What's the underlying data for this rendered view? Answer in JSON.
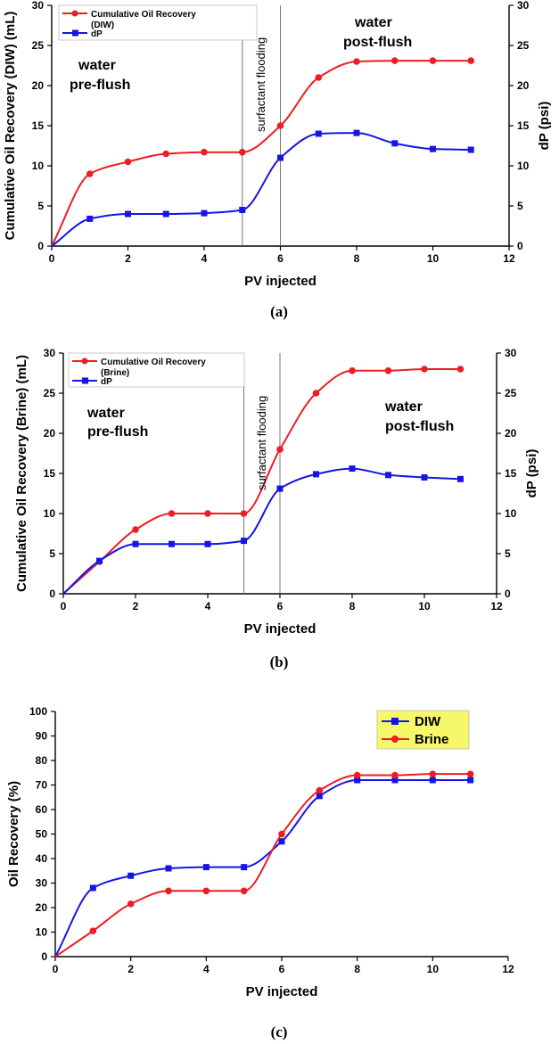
{
  "chart_data": [
    {
      "id": "a",
      "type": "line",
      "panel_label": "(a)",
      "xlabel": "PV injected",
      "ylabel": "Cumulative Oil Recovery (DIW) (mL)",
      "y2label": "dP (psi)",
      "xlim": [
        0,
        12
      ],
      "ylim": [
        0,
        30
      ],
      "y2lim": [
        0,
        30
      ],
      "xticks": [
        0,
        2,
        4,
        6,
        8,
        10,
        12
      ],
      "yticks": [
        0,
        5,
        10,
        15,
        20,
        25,
        30
      ],
      "y2ticks": [
        0,
        5,
        10,
        15,
        20,
        25,
        30
      ],
      "legend": {
        "position": "top-left",
        "entries": [
          "Cumulative Oil Recovery",
          "(DIW)",
          "dP"
        ]
      },
      "series": [
        {
          "name": "Cumulative Oil Recovery (DIW)",
          "color": "#ee1c24",
          "marker": "circle",
          "axis": "left",
          "x": [
            0,
            1,
            2,
            3,
            4,
            5,
            6,
            7,
            8,
            9,
            10,
            11
          ],
          "values": [
            0,
            9,
            10.5,
            11.5,
            11.7,
            11.7,
            15,
            21,
            23,
            23.1,
            23.1,
            23.1
          ]
        },
        {
          "name": "dP",
          "color": "#1515e6",
          "marker": "square",
          "axis": "right",
          "x": [
            0,
            1,
            2,
            3,
            4,
            5,
            6,
            7,
            8,
            9,
            10,
            11
          ],
          "values": [
            0,
            3.4,
            4,
            4,
            4.1,
            4.5,
            11,
            14,
            14.1,
            12.8,
            12.1,
            12
          ]
        }
      ],
      "vlines": [
        5,
        6
      ],
      "annotations": {
        "left_line1": "water",
        "left_line2": "pre-flush",
        "right_line1": "water",
        "right_line2": "post-flush",
        "vertical": "surfactant flooding"
      }
    },
    {
      "id": "b",
      "type": "line",
      "panel_label": "(b)",
      "xlabel": "PV injected",
      "ylabel": "Cumulative Oil Recovery (Brine) (mL)",
      "y2label": "dP (psi)",
      "xlim": [
        0,
        12
      ],
      "ylim": [
        0,
        30
      ],
      "y2lim": [
        0,
        30
      ],
      "xticks": [
        0,
        2,
        4,
        6,
        8,
        10,
        12
      ],
      "yticks": [
        0,
        5,
        10,
        15,
        20,
        25,
        30
      ],
      "y2ticks": [
        0,
        5,
        10,
        15,
        20,
        25,
        30
      ],
      "legend": {
        "position": "top-left",
        "entries": [
          "Cumulative Oil Recovery",
          "(Brine)",
          "dP"
        ]
      },
      "series": [
        {
          "name": "Cumulative Oil Recovery (Brine)",
          "color": "#ee1c24",
          "marker": "circle",
          "axis": "left",
          "x": [
            0,
            1,
            2,
            3,
            4,
            5,
            6,
            7,
            8,
            9,
            10,
            11
          ],
          "values": [
            0,
            4,
            8,
            10,
            10,
            10,
            18,
            25,
            27.8,
            27.8,
            28,
            28
          ]
        },
        {
          "name": "dP",
          "color": "#1515e6",
          "marker": "square",
          "axis": "right",
          "x": [
            0,
            1,
            2,
            3,
            4,
            5,
            6,
            7,
            8,
            9,
            10,
            11
          ],
          "values": [
            0,
            4.1,
            6.2,
            6.2,
            6.2,
            6.6,
            13.1,
            14.9,
            15.6,
            14.8,
            14.5,
            14.3
          ]
        }
      ],
      "vlines": [
        5,
        6
      ],
      "annotations": {
        "left_line1": "water",
        "left_line2": "pre-flush",
        "right_line1": "water",
        "right_line2": "post-flush",
        "vertical": "surfactant flooding"
      }
    },
    {
      "id": "c",
      "type": "line",
      "panel_label": "(c)",
      "xlabel": "PV injected",
      "ylabel": "Oil Recovery (%)",
      "xlim": [
        0,
        12
      ],
      "ylim": [
        0,
        100
      ],
      "xticks": [
        0,
        2,
        4,
        6,
        8,
        10,
        12
      ],
      "yticks": [
        0,
        10,
        20,
        30,
        40,
        50,
        60,
        70,
        80,
        90,
        100
      ],
      "legend": {
        "position": "top-right",
        "entries": [
          "DIW",
          "Brine"
        ],
        "background": "#f7f76a"
      },
      "series": [
        {
          "name": "DIW",
          "color": "#1515e6",
          "marker": "square",
          "axis": "left",
          "x": [
            0,
            1,
            2,
            3,
            4,
            5,
            6,
            7,
            8,
            9,
            10,
            11
          ],
          "values": [
            0,
            28,
            33,
            36,
            36.5,
            36.5,
            47,
            65.5,
            72,
            72,
            72,
            72
          ]
        },
        {
          "name": "Brine",
          "color": "#ee1c24",
          "marker": "circle",
          "axis": "left",
          "x": [
            0,
            1,
            2,
            3,
            4,
            5,
            6,
            7,
            8,
            9,
            10,
            11
          ],
          "values": [
            0,
            10.5,
            21.5,
            26.8,
            26.8,
            26.8,
            50,
            67.8,
            74,
            74,
            74.5,
            74.5
          ]
        }
      ]
    }
  ]
}
